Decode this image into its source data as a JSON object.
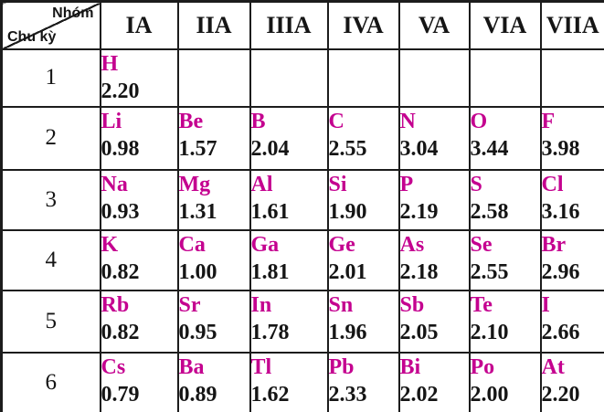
{
  "chart_data": {
    "type": "table",
    "corner_labels": {
      "column_axis": "Nhóm",
      "row_axis": "Chu kỳ"
    },
    "columns": [
      "IA",
      "IIA",
      "IIIA",
      "IVA",
      "VA",
      "VIA",
      "VIIA"
    ],
    "row_labels": [
      "1",
      "2",
      "3",
      "4",
      "5",
      "6"
    ],
    "cells": [
      [
        {
          "symbol": "H",
          "value": "2.20"
        },
        null,
        null,
        null,
        null,
        null,
        null
      ],
      [
        {
          "symbol": "Li",
          "value": "0.98"
        },
        {
          "symbol": "Be",
          "value": "1.57"
        },
        {
          "symbol": "B",
          "value": "2.04"
        },
        {
          "symbol": "C",
          "value": "2.55"
        },
        {
          "symbol": "N",
          "value": "3.04"
        },
        {
          "symbol": "O",
          "value": "3.44"
        },
        {
          "symbol": "F",
          "value": "3.98"
        }
      ],
      [
        {
          "symbol": "Na",
          "value": "0.93"
        },
        {
          "symbol": "Mg",
          "value": "1.31"
        },
        {
          "symbol": "Al",
          "value": "1.61"
        },
        {
          "symbol": "Si",
          "value": "1.90"
        },
        {
          "symbol": "P",
          "value": "2.19"
        },
        {
          "symbol": "S",
          "value": "2.58"
        },
        {
          "symbol": "Cl",
          "value": "3.16"
        }
      ],
      [
        {
          "symbol": "K",
          "value": "0.82"
        },
        {
          "symbol": "Ca",
          "value": "1.00"
        },
        {
          "symbol": "Ga",
          "value": "1.81"
        },
        {
          "symbol": "Ge",
          "value": "2.01"
        },
        {
          "symbol": "As",
          "value": "2.18"
        },
        {
          "symbol": "Se",
          "value": "2.55"
        },
        {
          "symbol": "Br",
          "value": "2.96"
        }
      ],
      [
        {
          "symbol": "Rb",
          "value": "0.82"
        },
        {
          "symbol": "Sr",
          "value": "0.95"
        },
        {
          "symbol": "In",
          "value": "1.78"
        },
        {
          "symbol": "Sn",
          "value": "1.96"
        },
        {
          "symbol": "Sb",
          "value": "2.05"
        },
        {
          "symbol": "Te",
          "value": "2.10"
        },
        {
          "symbol": "I",
          "value": "2.66"
        }
      ],
      [
        {
          "symbol": "Cs",
          "value": "0.79"
        },
        {
          "symbol": "Ba",
          "value": "0.89"
        },
        {
          "symbol": "Tl",
          "value": "1.62"
        },
        {
          "symbol": "Pb",
          "value": "2.33"
        },
        {
          "symbol": "Bi",
          "value": "2.02"
        },
        {
          "symbol": "Po",
          "value": "2.00"
        },
        {
          "symbol": "At",
          "value": "2.20"
        }
      ]
    ]
  },
  "colors": {
    "symbol_text": "#C4008F",
    "body_text": "#151515",
    "border": "#1c1c1c",
    "background": "#ffffff"
  }
}
